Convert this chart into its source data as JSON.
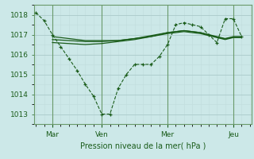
{
  "xlabel": "Pression niveau de la mer( hPa )",
  "bg_color": "#cce8e8",
  "grid_color_major": "#aacaca",
  "grid_color_minor": "#c0dcdc",
  "line_color": "#1a5c1a",
  "ylim": [
    1012.5,
    1018.5
  ],
  "yticks": [
    1013,
    1014,
    1015,
    1016,
    1017,
    1018
  ],
  "x_ticks_labels": [
    "Mar",
    "Ven",
    "Mer",
    "Jeu"
  ],
  "x_ticks_pos": [
    1,
    4,
    8,
    12
  ],
  "xlim": [
    -0.1,
    13.1
  ],
  "series1_x": [
    0,
    0.5,
    1,
    1.5,
    2,
    2.5,
    3,
    3.5,
    4,
    4.5,
    5,
    5.5,
    6,
    6.5,
    7,
    7.5,
    8,
    8.5,
    9,
    9.5,
    10,
    10.5,
    11,
    11.5,
    12,
    12.5
  ],
  "series1_y": [
    1018.1,
    1017.7,
    1017.0,
    1016.4,
    1015.8,
    1015.2,
    1014.5,
    1013.9,
    1013.0,
    1013.0,
    1014.3,
    1015.0,
    1015.5,
    1015.5,
    1015.5,
    1015.9,
    1016.5,
    1017.5,
    1017.6,
    1017.5,
    1017.4,
    1017.0,
    1016.6,
    1017.8,
    1017.8,
    1016.9
  ],
  "series2_x": [
    1,
    2,
    3,
    4,
    5,
    6,
    7,
    8,
    9,
    10,
    10.5,
    11,
    11.5,
    12,
    12.5
  ],
  "series2_y": [
    1016.9,
    1016.8,
    1016.7,
    1016.7,
    1016.7,
    1016.8,
    1016.9,
    1017.1,
    1017.2,
    1017.1,
    1017.0,
    1016.9,
    1016.8,
    1016.9,
    1016.9
  ],
  "series3_x": [
    1,
    2,
    3,
    4,
    5,
    6,
    7,
    8,
    9,
    10,
    10.5,
    11,
    11.5,
    12,
    12.5
  ],
  "series3_y": [
    1016.6,
    1016.55,
    1016.5,
    1016.55,
    1016.65,
    1016.75,
    1016.9,
    1017.05,
    1017.15,
    1017.05,
    1016.95,
    1016.85,
    1016.75,
    1016.85,
    1016.85
  ],
  "series4_x": [
    1,
    2,
    3,
    4,
    5,
    6,
    7,
    8,
    9,
    10,
    10.5,
    11,
    11.5,
    12,
    12.5
  ],
  "series4_y": [
    1016.75,
    1016.7,
    1016.65,
    1016.65,
    1016.7,
    1016.8,
    1016.95,
    1017.1,
    1017.2,
    1017.1,
    1016.98,
    1016.87,
    1016.78,
    1016.87,
    1016.87
  ],
  "vlines_x": [
    1,
    4,
    8,
    12
  ]
}
